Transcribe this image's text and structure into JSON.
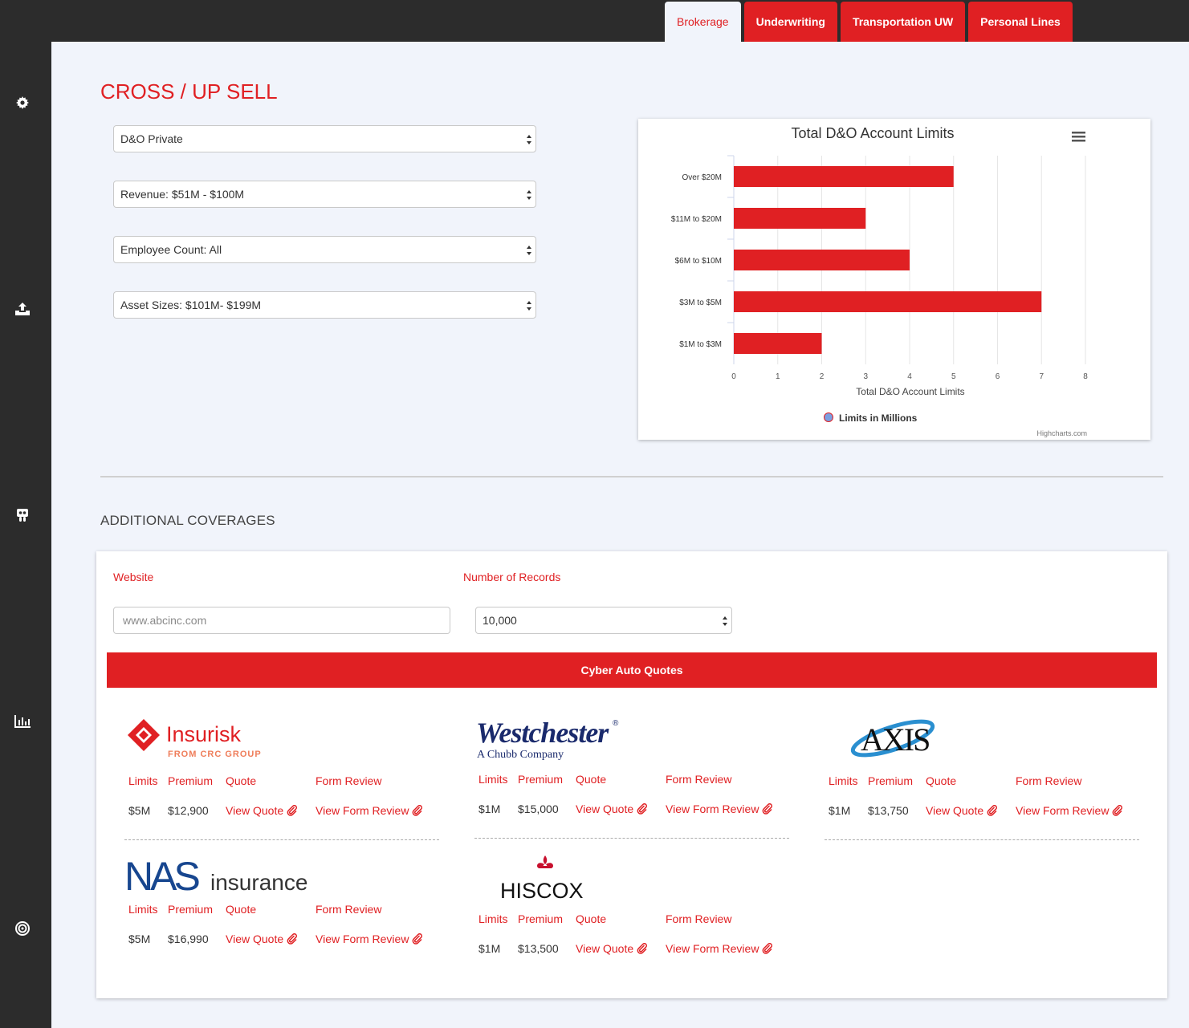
{
  "nav": {
    "tabs": [
      {
        "label": "Brokerage",
        "active": true
      },
      {
        "label": "Underwriting",
        "active": false
      },
      {
        "label": "Transportation UW",
        "active": false
      },
      {
        "label": "Personal Lines",
        "active": false
      }
    ]
  },
  "sidebar": {
    "icons": [
      "gear-icon",
      "upload-icon",
      "slideshare-icon",
      "bar-chart-icon",
      "target-icon"
    ]
  },
  "page": {
    "title": "CROSS / UP SELL",
    "filters": [
      {
        "value": "D&O Private"
      },
      {
        "value": "Revenue: $51M - $100M"
      },
      {
        "value": "Employee Count: All"
      },
      {
        "value": "Asset Sizes: $101M- $199M"
      }
    ]
  },
  "chart_data": {
    "type": "bar",
    "orientation": "horizontal",
    "title": "Total D&O Account Limits",
    "categories": [
      "Over $20M",
      "$11M to $20M",
      "$6M to $10M",
      "$3M to $5M",
      "$1M to $3M"
    ],
    "series": [
      {
        "name": "Limits in Millions",
        "values": [
          5,
          3,
          4,
          7,
          2
        ]
      }
    ],
    "xlabel": "Total D&O Account Limits",
    "ylabel": "",
    "xticks": [
      "0",
      "1",
      "2",
      "3",
      "4",
      "5",
      "6",
      "7",
      "8"
    ],
    "xlim": [
      0,
      8
    ],
    "grid": true,
    "legend": "bottom-center",
    "credit": "Highcharts.com",
    "color": "#e02023"
  },
  "additional": {
    "title": "ADDITIONAL COVERAGES",
    "website_label": "Website",
    "website_placeholder": "www.abcinc.com",
    "records_label": "Number of Records",
    "records_value": "10,000",
    "cta_label": "Cyber Auto Quotes"
  },
  "quotes": {
    "headers": {
      "limits": "Limits",
      "premium": "Premium",
      "quote": "Quote",
      "form_review": "Form Review"
    },
    "view_quote": "View Quote",
    "view_form_review": "View Form Review",
    "carriers": [
      {
        "logo": "Insurisk",
        "logo_sub": "FROM CRC GROUP",
        "limits": "$5M",
        "premium": "$12,900"
      },
      {
        "logo": "Westchester",
        "logo_sub": "A Chubb Company",
        "limits": "$1M",
        "premium": "$15,000"
      },
      {
        "logo": "AXIS",
        "logo_sub": "",
        "limits": "$1M",
        "premium": "$13,750"
      },
      {
        "logo": "NAS",
        "logo_sub": "insurance",
        "limits": "$5M",
        "premium": "$16,990"
      },
      {
        "logo": "HISCOX",
        "logo_sub": "",
        "limits": "$1M",
        "premium": "$13,500"
      }
    ]
  },
  "colors": {
    "brand_red": "#e02023",
    "dark": "#2c2c2c",
    "background": "#f1f4fb"
  }
}
